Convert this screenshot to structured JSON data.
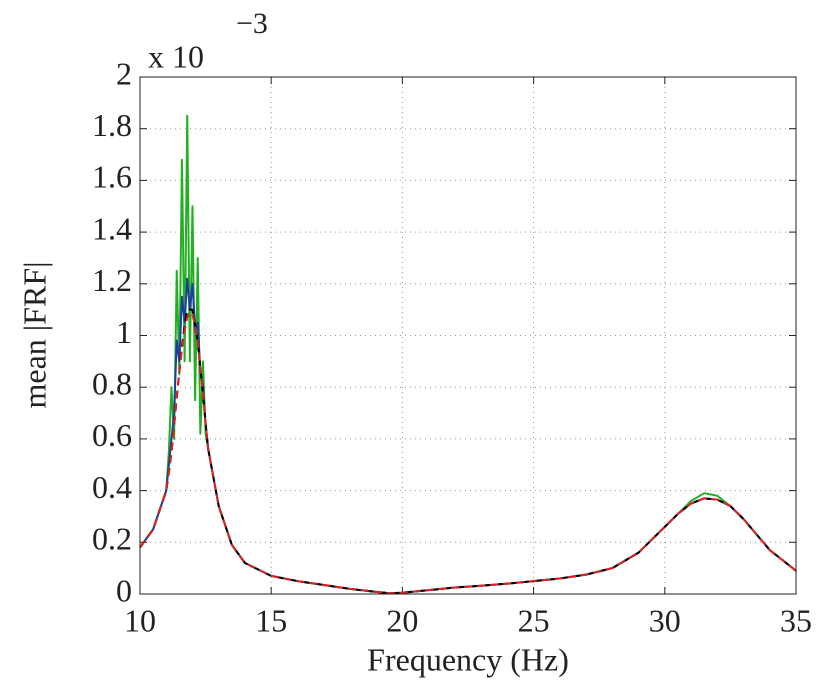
{
  "chart_data": {
    "type": "line",
    "xlabel": "Frequency (Hz)",
    "ylabel": "mean |FRF|",
    "y_multiplier": "x 10",
    "y_multiplier_exponent": "−3",
    "x": [
      10,
      10.5,
      11,
      11.1,
      11.2,
      11.3,
      11.4,
      11.5,
      11.6,
      11.7,
      11.8,
      11.9,
      12,
      12.1,
      12.2,
      12.3,
      12.4,
      12.5,
      12.6,
      13,
      13.5,
      14,
      15,
      16,
      17,
      18,
      19,
      19.5,
      20,
      21,
      22,
      23,
      24,
      25,
      26,
      27,
      28,
      29,
      29.5,
      30,
      30.5,
      31,
      31.5,
      32,
      32.5,
      33,
      33.5,
      34,
      34.5,
      35
    ],
    "series": [
      {
        "color": "#22b022",
        "dashed": false,
        "values": [
          0.18,
          0.25,
          0.4,
          0.55,
          0.8,
          0.6,
          1.25,
          0.85,
          1.68,
          0.9,
          1.85,
          0.9,
          1.5,
          0.75,
          1.3,
          0.62,
          0.9,
          0.62,
          0.56,
          0.34,
          0.19,
          0.12,
          0.07,
          0.05,
          0.035,
          0.02,
          0.008,
          0.003,
          0.005,
          0.015,
          0.025,
          0.032,
          0.04,
          0.05,
          0.06,
          0.075,
          0.1,
          0.16,
          0.21,
          0.26,
          0.31,
          0.36,
          0.39,
          0.38,
          0.34,
          0.29,
          0.23,
          0.17,
          0.13,
          0.09
        ]
      },
      {
        "color": "#1f3fa0",
        "dashed": false,
        "values": [
          0.18,
          0.25,
          0.4,
          0.5,
          0.6,
          0.7,
          0.98,
          0.9,
          1.15,
          1.05,
          1.22,
          1.1,
          1.2,
          1.02,
          1.05,
          0.86,
          0.8,
          0.66,
          0.56,
          0.34,
          0.19,
          0.12,
          0.07,
          0.05,
          0.035,
          0.02,
          0.008,
          0.003,
          0.005,
          0.015,
          0.025,
          0.032,
          0.04,
          0.05,
          0.06,
          0.075,
          0.1,
          0.16,
          0.21,
          0.26,
          0.31,
          0.35,
          0.37,
          0.365,
          0.34,
          0.29,
          0.23,
          0.17,
          0.13,
          0.09
        ]
      },
      {
        "color": "#000000",
        "dashed": true,
        "values": [
          0.18,
          0.25,
          0.4,
          0.47,
          0.55,
          0.65,
          0.76,
          0.86,
          0.96,
          1.04,
          1.1,
          1.1,
          1.1,
          1.04,
          0.97,
          0.88,
          0.77,
          0.66,
          0.56,
          0.34,
          0.19,
          0.12,
          0.07,
          0.05,
          0.035,
          0.02,
          0.008,
          0.003,
          0.005,
          0.015,
          0.025,
          0.032,
          0.04,
          0.05,
          0.06,
          0.075,
          0.1,
          0.16,
          0.21,
          0.26,
          0.31,
          0.35,
          0.37,
          0.365,
          0.34,
          0.29,
          0.23,
          0.17,
          0.13,
          0.09
        ]
      },
      {
        "color": "#e0201c",
        "dashed": true,
        "values": [
          0.18,
          0.25,
          0.4,
          0.47,
          0.55,
          0.65,
          0.76,
          0.86,
          0.95,
          1.02,
          1.07,
          1.09,
          1.08,
          1.04,
          0.97,
          0.88,
          0.77,
          0.66,
          0.56,
          0.34,
          0.19,
          0.12,
          0.07,
          0.05,
          0.035,
          0.02,
          0.008,
          0.003,
          0.005,
          0.015,
          0.025,
          0.032,
          0.04,
          0.05,
          0.06,
          0.075,
          0.1,
          0.16,
          0.21,
          0.26,
          0.31,
          0.35,
          0.37,
          0.365,
          0.34,
          0.29,
          0.23,
          0.17,
          0.13,
          0.09
        ]
      }
    ],
    "xlim": [
      10,
      35
    ],
    "xticks": [
      10,
      15,
      20,
      25,
      30,
      35
    ],
    "ylim": [
      0,
      2
    ],
    "yticks": [
      0,
      0.2,
      0.4,
      0.6,
      0.8,
      1,
      1.2,
      1.4,
      1.6,
      1.8,
      2
    ],
    "grid": true
  }
}
